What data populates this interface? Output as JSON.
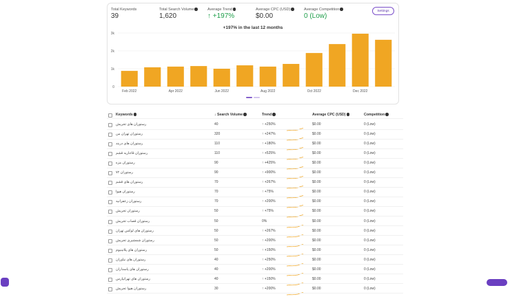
{
  "stats": [
    {
      "label": "Total Keywords",
      "value": "39"
    },
    {
      "label": "Total Search Volume",
      "value": "1,620"
    },
    {
      "label": "Average Trend",
      "value": "+197%"
    },
    {
      "label": "Average CPC (USD)",
      "value": "$0.00"
    },
    {
      "label": "Average Competition",
      "value": "0 (Low)"
    }
  ],
  "settings": "Settings",
  "chart_data": {
    "type": "bar",
    "title": "+197% in the last 12 months",
    "categories": [
      "Feb 2022",
      null,
      "Apr 2022",
      null,
      "Jun 2022",
      null,
      "Aug 2022",
      null,
      "Oct 2022",
      null,
      "Dec 2022",
      null
    ],
    "values": [
      880,
      1080,
      1120,
      1150,
      1000,
      1190,
      1120,
      1270,
      1880,
      2380,
      2960,
      2620
    ],
    "color": "#f0a623",
    "ylim": [
      0,
      3000
    ],
    "yticks": [
      0,
      {
        "value": 1000,
        "label": "1k"
      },
      {
        "value": 2000,
        "label": "2k"
      },
      {
        "value": 3000,
        "label": "3k"
      }
    ],
    "grid": true
  },
  "table": {
    "columns": [
      "Keywords",
      "Search Volume",
      "Trend",
      "Average CPC (USD)",
      "Competition"
    ],
    "rows": [
      [
        "رستوران های تجریش",
        "40",
        "+250%",
        "$0.00",
        "0 (Low)"
      ],
      [
        "رستوران تهران من",
        "320",
        "+247%",
        "$0.00",
        "0 (Low)"
      ],
      [
        "رستوران های دربند",
        "110",
        "+180%",
        "$0.00",
        "0 (Low)"
      ],
      [
        "رستوران قاجاریه قشم",
        "110",
        "+525%",
        "$0.00",
        "0 (Low)"
      ],
      [
        "رستوران مزه",
        "90",
        "+425%",
        "$0.00",
        "0 (Low)"
      ],
      [
        "رستوران ۷۲",
        "90",
        "+900%",
        "$0.00",
        "0 (Low)"
      ],
      [
        "رستوران های قشم",
        "70",
        "+267%",
        "$0.00",
        "0 (Low)"
      ],
      [
        "رستوران هیوا",
        "70",
        "+75%",
        "$0.00",
        "0 (Low)"
      ],
      [
        "رستوران زعفرانیه",
        "70",
        "+200%",
        "$0.00",
        "0 (Low)"
      ],
      [
        "رستوران تجریش",
        "50",
        "+75%",
        "$0.00",
        "0 (Low)"
      ],
      [
        "رستوران قصاب تجریش",
        "50",
        "0%",
        "$0.00",
        "0 (Low)"
      ],
      [
        "رستوران های لوکس تهران",
        "50",
        "+267%",
        "$0.00",
        "0 (Low)"
      ],
      [
        "رستوران شمشیری تجریش",
        "50",
        "+200%",
        "$0.00",
        "0 (Low)"
      ],
      [
        "رستوران های پلاتینیوم",
        "50",
        "+150%",
        "$0.00",
        "0 (Low)"
      ],
      [
        "رستوران های نیاوران",
        "40",
        "+250%",
        "$0.00",
        "0 (Low)"
      ],
      [
        "رستوران های پاسداران",
        "40",
        "+200%",
        "$0.00",
        "0 (Low)"
      ],
      [
        "رستوران های تهرانپارس",
        "40",
        "+150%",
        "$0.00",
        "0 (Low)"
      ],
      [
        "رستوران هیوا تجریش",
        "30",
        "+200%",
        "$0.00",
        "0 (Low)"
      ]
    ]
  }
}
